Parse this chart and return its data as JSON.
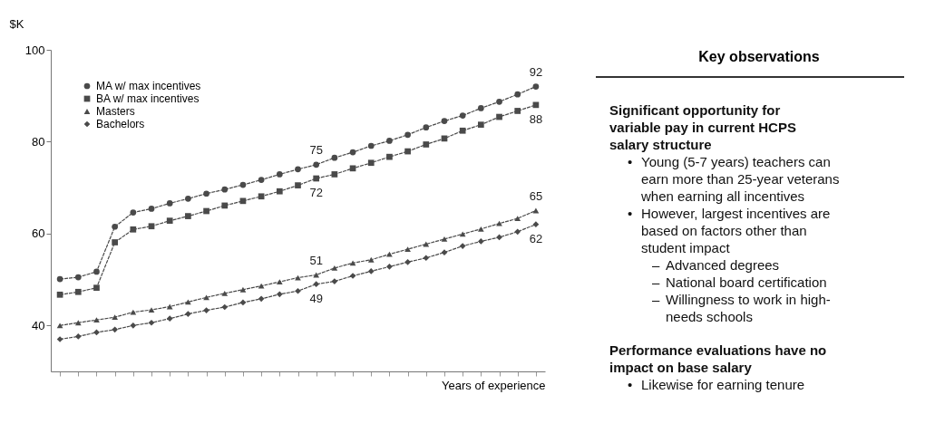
{
  "chart_data": [
    {
      "type": "line",
      "ylabel": "$K",
      "xlabel": "Years of experience",
      "ylim": [
        30,
        100
      ],
      "yticks": [
        40,
        60,
        80,
        100
      ],
      "grid": false,
      "legend": "top left",
      "categories": [
        null,
        null,
        null,
        null,
        null,
        null,
        null,
        null,
        null,
        null,
        null,
        null,
        null,
        null,
        null,
        null,
        null,
        null,
        null,
        null,
        null,
        null,
        null,
        null,
        null,
        null,
        null
      ],
      "series": [
        {
          "name": "MA w/ max incentives",
          "color": "#4a4a4a",
          "line_style": "dashed",
          "marker": "circle",
          "values": [
            50.1,
            50.5,
            51.7,
            61.5,
            64.6,
            65.4,
            66.6,
            67.6,
            68.7,
            69.6,
            70.6,
            71.7,
            72.9,
            74.0,
            75,
            76.5,
            77.7,
            79.1,
            80.2,
            81.5,
            83.1,
            84.5,
            85.7,
            87.3,
            88.7,
            90.3,
            92
          ],
          "value_labels": [
            null,
            null,
            null,
            null,
            null,
            null,
            null,
            null,
            null,
            null,
            null,
            null,
            null,
            null,
            "75",
            null,
            null,
            null,
            null,
            null,
            null,
            null,
            null,
            null,
            null,
            null,
            "92"
          ]
        },
        {
          "name": "BA w/ max incentives",
          "color": "#4a4a4a",
          "line_style": "dashed",
          "marker": "square",
          "values": [
            46.7,
            47.3,
            48.2,
            58.1,
            60.9,
            61.6,
            62.8,
            63.8,
            64.9,
            66.1,
            67.1,
            68.1,
            69.2,
            70.5,
            72,
            72.9,
            74.2,
            75.4,
            76.7,
            77.9,
            79.4,
            80.7,
            82.4,
            83.7,
            85.4,
            86.7,
            88
          ],
          "value_labels": [
            null,
            null,
            null,
            null,
            null,
            null,
            null,
            null,
            null,
            null,
            null,
            null,
            null,
            null,
            "72",
            null,
            null,
            null,
            null,
            null,
            null,
            null,
            null,
            null,
            null,
            null,
            "88"
          ]
        },
        {
          "name": "Masters",
          "color": "#4a4a4a",
          "line_style": "dashed",
          "marker": "triangle",
          "values": [
            40,
            40.6,
            41.2,
            41.8,
            42.9,
            43.4,
            44.1,
            45.1,
            46.1,
            47.0,
            47.8,
            48.6,
            49.5,
            50.4,
            51,
            52.5,
            53.6,
            54.3,
            55.5,
            56.6,
            57.7,
            58.8,
            59.9,
            61.0,
            62.2,
            63.3,
            65
          ],
          "value_labels": [
            null,
            null,
            null,
            null,
            null,
            null,
            null,
            null,
            null,
            null,
            null,
            null,
            null,
            null,
            "51",
            null,
            null,
            null,
            null,
            null,
            null,
            null,
            null,
            null,
            null,
            null,
            "65"
          ]
        },
        {
          "name": "Bachelors",
          "color": "#4a4a4a",
          "line_style": "dashed",
          "marker": "diamond",
          "values": [
            37.0,
            37.6,
            38.5,
            39.1,
            40,
            40.6,
            41.5,
            42.5,
            43.3,
            44.0,
            45.0,
            45.8,
            46.8,
            47.5,
            49,
            49.6,
            50.8,
            51.8,
            52.8,
            53.8,
            54.7,
            55.9,
            57.3,
            58.3,
            59.2,
            60.4,
            62
          ],
          "value_labels": [
            null,
            null,
            null,
            null,
            null,
            null,
            null,
            null,
            null,
            null,
            null,
            null,
            null,
            null,
            "49",
            null,
            null,
            null,
            null,
            null,
            null,
            null,
            null,
            null,
            null,
            null,
            "62"
          ]
        }
      ]
    },
    {
      "type": "other",
      "title": "Key observations",
      "annotations": [
        "Significant opportunity for variable pay in current HCPS salary structure",
        "• Young (5-7 years) teachers can earn more than 25-year veterans when earning all incentives",
        "• However, largest incentives are based on factors other than student impact",
        "– Advanced degrees",
        "– National board certification",
        "– Willingness to work in high-needs schools",
        "Performance evaluations have no impact on base salary",
        "• Likewise for earning tenure"
      ]
    }
  ]
}
